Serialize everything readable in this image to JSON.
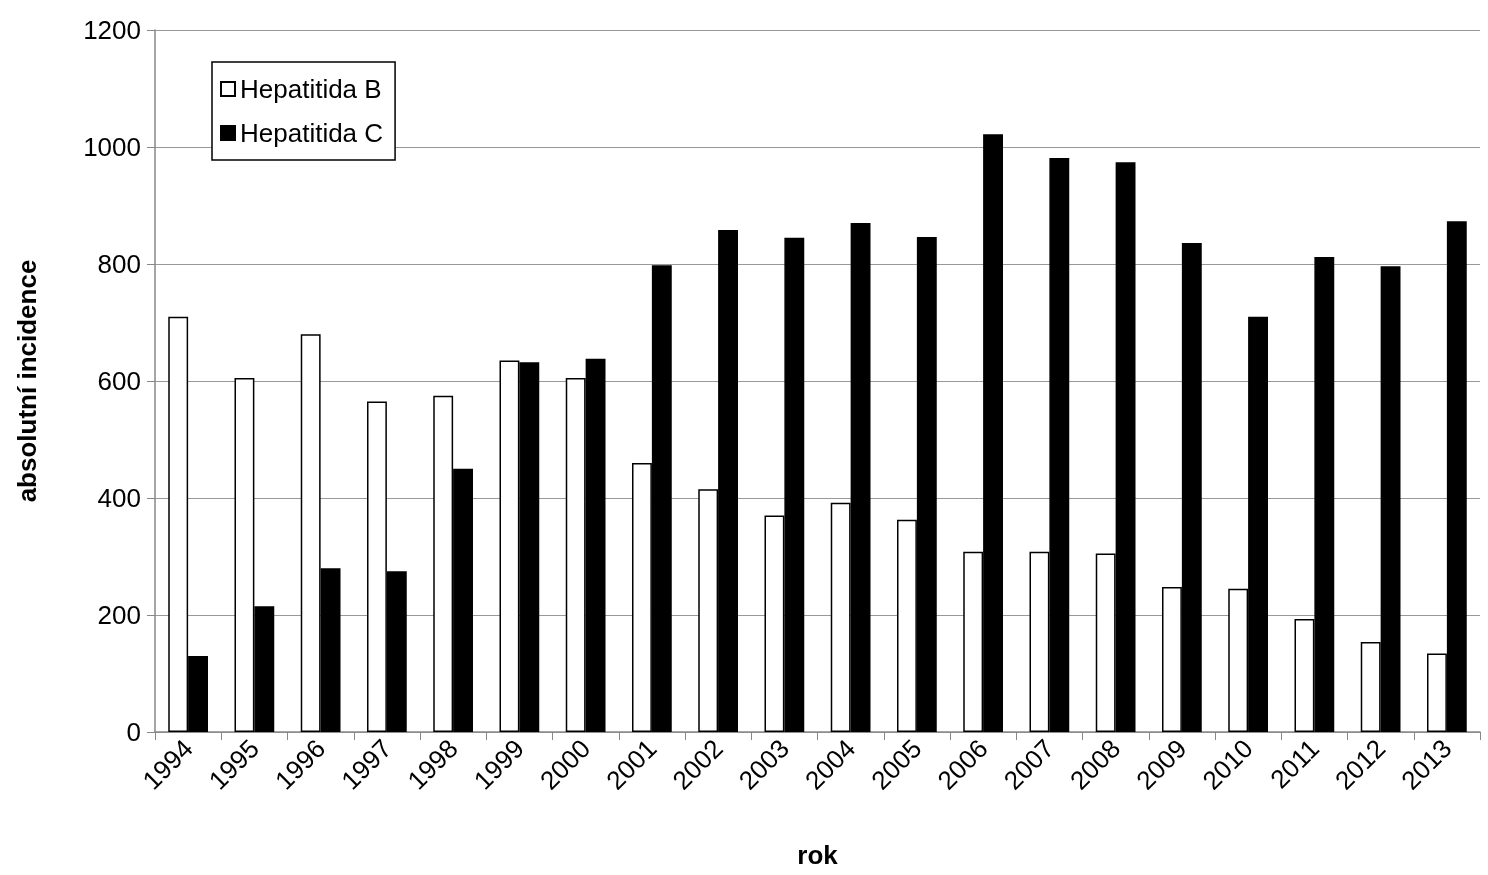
{
  "chart_data": {
    "type": "bar",
    "xlabel": "rok",
    "ylabel": "absolutní incidence",
    "categories": [
      "1994",
      "1995",
      "1996",
      "1997",
      "1998",
      "1999",
      "2000",
      "2001",
      "2002",
      "2003",
      "2004",
      "2005",
      "2006",
      "2007",
      "2008",
      "2009",
      "2010",
      "2011",
      "2012",
      "2013"
    ],
    "series": [
      {
        "name": "Hepatitida B",
        "color": "#ffffff",
        "values": [
          710,
          605,
          680,
          565,
          575,
          635,
          605,
          460,
          415,
          370,
          392,
          363,
          308,
          308,
          305,
          248,
          245,
          193,
          154,
          134
        ]
      },
      {
        "name": "Hepatitida C",
        "color": "#000000",
        "values": [
          130,
          215,
          280,
          275,
          450,
          632,
          638,
          798,
          858,
          845,
          870,
          846,
          1022,
          981,
          974,
          836,
          710,
          812,
          796,
          873
        ]
      }
    ],
    "ylim": [
      0,
      1200
    ],
    "yticks": [
      0,
      200,
      400,
      600,
      800,
      1000,
      1200
    ],
    "grid": "y",
    "legend": "top left"
  }
}
